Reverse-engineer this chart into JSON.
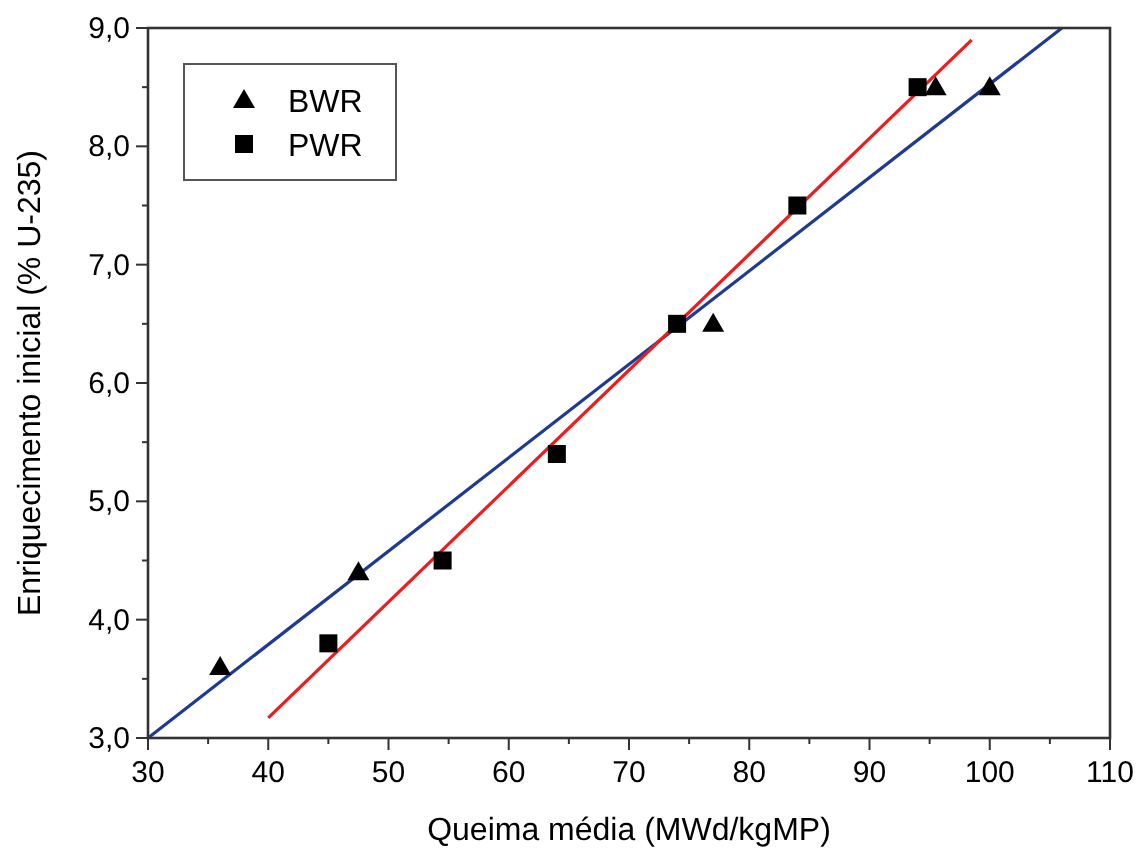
{
  "chart_data": {
    "type": "scatter",
    "xlabel": "Queima média (MWd/kgMP)",
    "ylabel": "Enriquecimento inicial (% U-235)",
    "xlim": [
      30,
      110
    ],
    "ylim": [
      3,
      9
    ],
    "xticks": [
      30,
      40,
      50,
      60,
      70,
      80,
      90,
      100,
      110
    ],
    "yticks": [
      {
        "value": 3,
        "label": "3,0"
      },
      {
        "value": 4,
        "label": "4,0"
      },
      {
        "value": 5,
        "label": "5,0"
      },
      {
        "value": 6,
        "label": "6,0"
      },
      {
        "value": 7,
        "label": "7,0"
      },
      {
        "value": 8,
        "label": "8,0"
      },
      {
        "value": 9,
        "label": "9,0"
      }
    ],
    "legend": "top left",
    "grid": false,
    "series": [
      {
        "name": "BWR",
        "marker": "triangle",
        "color": "#000000",
        "x": [
          36,
          47.5,
          77,
          95.5,
          100
        ],
        "values": [
          3.6,
          4.4,
          6.5,
          8.5,
          8.5
        ]
      },
      {
        "name": "PWR",
        "marker": "square",
        "color": "#000000",
        "x": [
          45,
          54.5,
          64,
          74,
          84,
          94
        ],
        "values": [
          3.8,
          4.5,
          5.4,
          6.5,
          7.5,
          8.5
        ]
      },
      {
        "type": "line",
        "marker": "none",
        "color": "#1f3a93",
        "x": [
          30,
          106
        ],
        "values": [
          3.0,
          9.0
        ]
      },
      {
        "type": "line",
        "marker": "none",
        "color": "#ee1c1c",
        "x": [
          40,
          98.5
        ],
        "values": [
          3.17,
          8.9
        ]
      }
    ]
  }
}
